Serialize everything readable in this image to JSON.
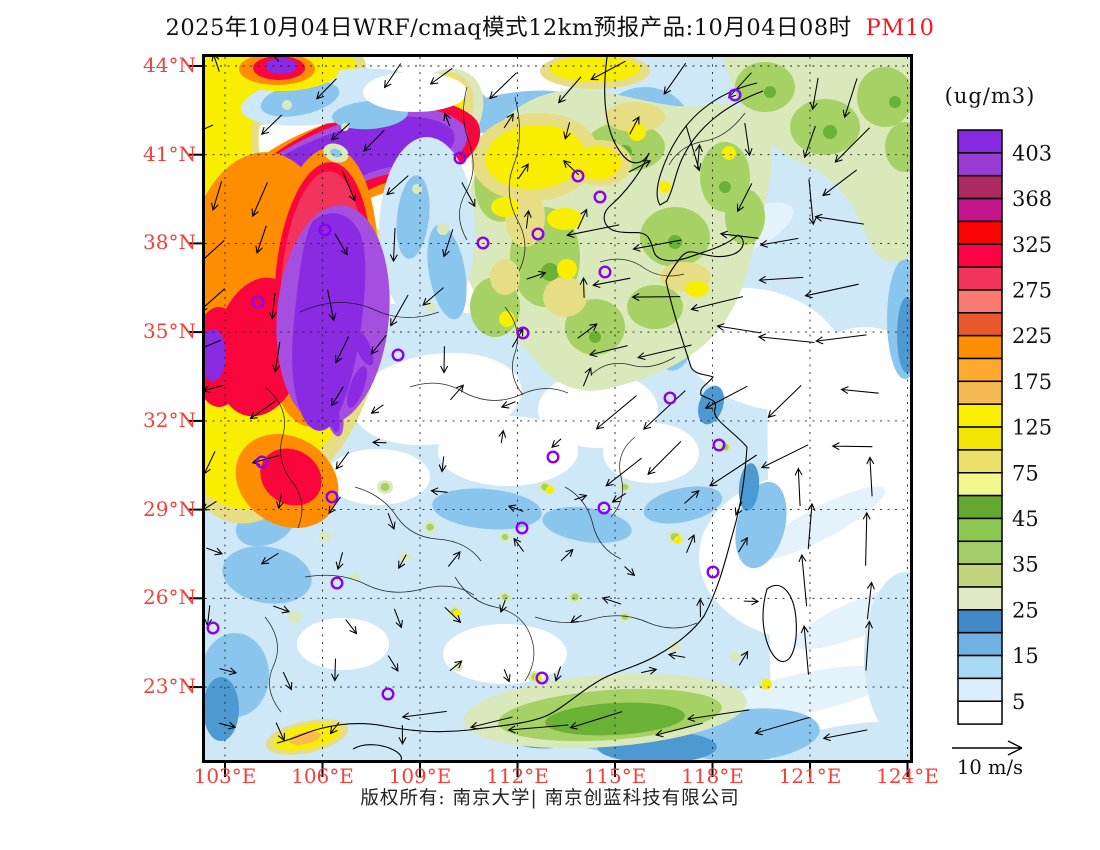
{
  "title": {
    "main": "2025年10月04日WRF/cmaq模式12km预报产品:10月04日08时",
    "pollutant": "PM10"
  },
  "colors": {
    "title_text": "#111111",
    "pollutant_label": "#fb1420",
    "axis_label": "#f2403c",
    "city_marker_ring": "#8a00f0",
    "wind_arrow": "#000000"
  },
  "legend": {
    "unit": "(ug/m3)",
    "labels": [
      "403",
      "368",
      "325",
      "275",
      "225",
      "175",
      "125",
      "75",
      "45",
      "35",
      "25",
      "15",
      "5"
    ],
    "cell_colors_top_to_bottom": [
      "#8629e0",
      "#9b3bd6",
      "#ad2a60",
      "#c4158c",
      "#fb0404",
      "#fb0345",
      "#f2335b",
      "#f97a72",
      "#e85a2b",
      "#fe8d01",
      "#fda92d",
      "#f5ba51",
      "#fcf000",
      "#f2e405",
      "#ece06b",
      "#f3f68c",
      "#64a832",
      "#8cc851",
      "#a2cd68",
      "#c2d57e",
      "#dfe9c3",
      "#4389c9",
      "#6fb1e1",
      "#a9daf3",
      "#dcedfb",
      "#ffffff"
    ]
  },
  "axes": {
    "lat": [
      "44°N",
      "41°N",
      "38°N",
      "35°N",
      "32°N",
      "29°N",
      "26°N",
      "23°N"
    ],
    "lon": [
      "103°E",
      "106°E",
      "109°E",
      "112°E",
      "115°E",
      "118°E",
      "121°E",
      "124°E"
    ]
  },
  "wind_reference": {
    "label": "10 m/s"
  },
  "footer": {
    "text": "版权所有: 南京大学| 南京创蓝科技有限公司"
  },
  "map": {
    "city_markers": [
      [
        255,
        101
      ],
      [
        278,
        186
      ],
      [
        333,
        177
      ],
      [
        53,
        245
      ],
      [
        193,
        298
      ],
      [
        318,
        276
      ],
      [
        530,
        38
      ],
      [
        373,
        119
      ],
      [
        395,
        140
      ],
      [
        400,
        215
      ],
      [
        465,
        341
      ],
      [
        348,
        400
      ],
      [
        514,
        388
      ],
      [
        399,
        451
      ],
      [
        508,
        515
      ],
      [
        57,
        405
      ],
      [
        127,
        440
      ],
      [
        132,
        526
      ],
      [
        8,
        571
      ],
      [
        183,
        637
      ],
      [
        317,
        471
      ],
      [
        120,
        173
      ],
      [
        337,
        621
      ]
    ],
    "wind_regions": [
      {
        "x": [
          0,
          705
        ],
        "y": [
          0,
          703
        ],
        "ang": null,
        "len": 16,
        "jit": 180
      },
      {
        "x": [
          0,
          230
        ],
        "y": [
          20,
          90
        ],
        "ang": 140,
        "len": 26,
        "jit": 35
      },
      {
        "x": [
          0,
          262
        ],
        "y": [
          90,
          210
        ],
        "ang": 100,
        "len": 30,
        "jit": 45
      },
      {
        "x": [
          0,
          262
        ],
        "y": [
          210,
          340
        ],
        "ang": 118,
        "len": 30,
        "jit": 40
      },
      {
        "x": [
          0,
          150
        ],
        "y": [
          290,
          440
        ],
        "ang": 150,
        "len": 26,
        "jit": 35
      },
      {
        "x": [
          180,
          430
        ],
        "y": [
          0,
          55
        ],
        "ang": 140,
        "len": 32,
        "jit": 25
      },
      {
        "x": [
          430,
          705
        ],
        "y": [
          0,
          130
        ],
        "ang": 108,
        "len": 40,
        "jit": 35
      },
      {
        "x": [
          262,
          520
        ],
        "y": [
          70,
          330
        ],
        "ang": -75,
        "len": 20,
        "jit": 75
      },
      {
        "x": [
          380,
          705
        ],
        "y": [
          130,
          290
        ],
        "ang": 178,
        "len": 46,
        "jit": 14
      },
      {
        "x": [
          430,
          705
        ],
        "y": [
          290,
          420
        ],
        "ang": 150,
        "len": 48,
        "jit": 16
      },
      {
        "x": [
          620,
          705
        ],
        "y": [
          330,
          430
        ],
        "ang": 176,
        "len": 40,
        "jit": 12
      },
      {
        "x": [
          560,
          705
        ],
        "y": [
          420,
          680
        ],
        "ang": -88,
        "len": 44,
        "jit": 10
      },
      {
        "x": [
          240,
          705
        ],
        "y": [
          645,
          703
        ],
        "ang": 172,
        "len": 52,
        "jit": 10
      },
      {
        "x": [
          0,
          240
        ],
        "y": [
          430,
          703
        ],
        "ang": 82,
        "len": 18,
        "jit": 70
      }
    ]
  },
  "chart_data": {
    "type": "heatmap",
    "title": "WRF/CMAQ 12km PM10 forecast, 2025-10-04 08:00",
    "unit": "ug/m3",
    "scale_values_low_to_high": [
      5,
      15,
      25,
      35,
      45,
      75,
      125,
      175,
      225,
      275,
      325,
      368,
      403
    ],
    "scale_colors_low_to_high": [
      "#ffffff",
      "#dcedfb",
      "#a9daf3",
      "#6fb1e1",
      "#4389c9",
      "#dfe9c3",
      "#c2d57e",
      "#a2cd68",
      "#8cc851",
      "#64a832",
      "#f3f68c",
      "#ece06b",
      "#f2e405",
      "#fcf000",
      "#f5ba51",
      "#fda92d",
      "#fe8d01",
      "#e85a2b",
      "#f97a72",
      "#f2335b",
      "#fb0345",
      "#fb0404",
      "#c4158c",
      "#ad2a60",
      "#9b3bd6",
      "#8629e0"
    ],
    "extent": {
      "lon_ticks": [
        "103°E",
        "106°E",
        "109°E",
        "112°E",
        "115°E",
        "118°E",
        "121°E",
        "124°E"
      ],
      "lat_ticks": [
        "44°N",
        "41°N",
        "38°N",
        "35°N",
        "32°N",
        "29°N",
        "26°N",
        "23°N"
      ]
    },
    "features": [
      "Severe dust plume exceeding 403 ug/m3 (purple cores ringed by red/orange/yellow) over NW of domain, ~34-42N / 103-110E",
      "Moderate 25-125 ug/m3 mottled green/yellow field over North China Plain and NE China",
      "Low 5-15 ug/m3 light blue over southern China",
      "Below 5 ug/m3 (white) over open seas east of ~120E",
      "Elevated 25-45 ug/m3 green band along south coast near 22N",
      "Wind vectors: northerly over Bohai, easterly over Yellow Sea, southerly near Taiwan Strait, easterly at southern boundary"
    ]
  }
}
